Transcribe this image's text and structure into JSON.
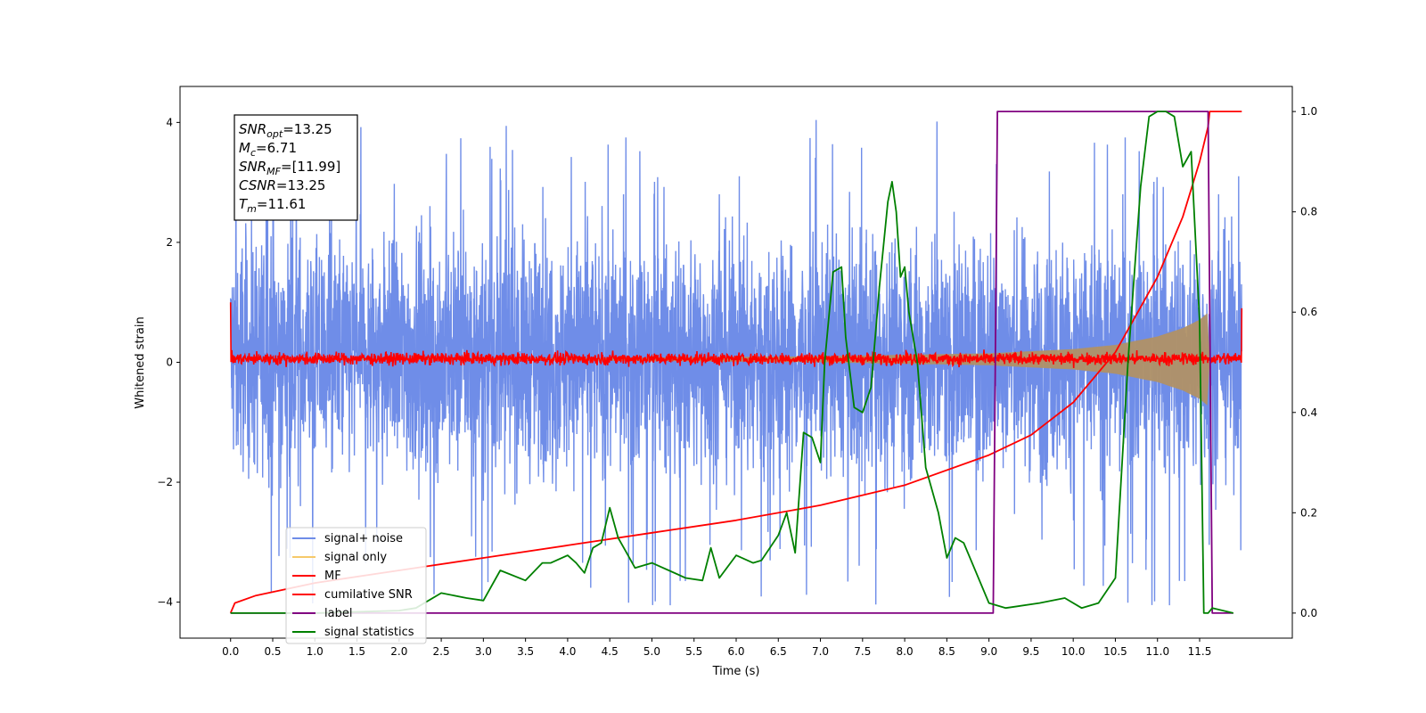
{
  "chart_data": {
    "type": "line",
    "x_axis": {
      "label": "Time (s)",
      "range": [
        -0.6,
        12.6
      ],
      "ticks": [
        0.0,
        0.5,
        1.0,
        1.5,
        2.0,
        2.5,
        3.0,
        3.5,
        4.0,
        4.5,
        5.0,
        5.5,
        6.0,
        6.5,
        7.0,
        7.5,
        8.0,
        8.5,
        9.0,
        9.5,
        10.0,
        10.5,
        11.0,
        11.5
      ],
      "tick_labels": [
        "0.0",
        "0.5",
        "1.0",
        "1.5",
        "2.0",
        "2.5",
        "3.0",
        "3.5",
        "4.0",
        "4.5",
        "5.0",
        "5.5",
        "6.0",
        "6.5",
        "7.0",
        "7.5",
        "8.0",
        "8.5",
        "9.0",
        "9.5",
        "10.0",
        "10.5",
        "11.0",
        "11.5"
      ]
    },
    "y_axis_left": {
      "label": "Whitened strain",
      "range": [
        -4.6,
        4.6
      ],
      "ticks": [
        -4,
        -2,
        0,
        2,
        4
      ],
      "tick_labels": [
        "−4",
        "−2",
        "0",
        "2",
        "4"
      ]
    },
    "y_axis_right": {
      "label": "",
      "range": [
        -0.05,
        1.05
      ],
      "ticks": [
        0.0,
        0.2,
        0.4,
        0.6,
        0.8,
        1.0
      ],
      "tick_labels": [
        "0.0",
        "0.2",
        "0.4",
        "0.6",
        "0.8",
        "1.0"
      ]
    },
    "annotation": [
      {
        "sym": "SNR",
        "sub": "opt",
        "value": "=13.25"
      },
      {
        "sym": "M",
        "sub": "c",
        "value": "=6.71"
      },
      {
        "sym": "SNR",
        "sub": "MF",
        "value": "=[11.99]"
      },
      {
        "sym": "CSNR",
        "sub": "",
        "value": "=13.25"
      },
      {
        "sym": "T",
        "sub": "m",
        "value": "=11.61"
      }
    ],
    "legend_position": "lower-left",
    "series": [
      {
        "name": "signal+ noise",
        "color": "#6f8de8",
        "axis": "left",
        "kind": "noise band",
        "description_values": {
          "t_start": 0.0,
          "t_end": 12.0,
          "typical_min": -2.2,
          "typical_max": 2.4,
          "peak_max": 4.15,
          "peak_min": -4.1
        }
      },
      {
        "name": "signal only",
        "color": "#f6c96a",
        "axis": "left",
        "kind": "chirp envelope",
        "envelope": {
          "t": [
            0.0,
            4.0,
            7.0,
            9.0,
            10.0,
            10.5,
            11.0,
            11.3,
            11.5,
            11.6,
            11.62
          ],
          "amp": [
            0.005,
            0.02,
            0.05,
            0.1,
            0.17,
            0.24,
            0.38,
            0.52,
            0.66,
            0.78,
            0.05
          ]
        }
      },
      {
        "name": "MF",
        "color": "#ff0000",
        "axis": "left",
        "kind": "noisy line",
        "description_values": {
          "center": 0.06,
          "noise_amp": 0.09,
          "start_value": 1.0,
          "end_value": 0.9
        }
      },
      {
        "name": "cumilative SNR",
        "color": "#ff0000",
        "axis": "right",
        "x": [
          0.0,
          0.05,
          0.3,
          1.0,
          2.0,
          3.0,
          4.0,
          5.0,
          6.0,
          7.0,
          8.0,
          9.0,
          9.5,
          10.0,
          10.5,
          11.0,
          11.3,
          11.5,
          11.6,
          11.62,
          12.0
        ],
        "y": [
          0.0,
          0.02,
          0.035,
          0.06,
          0.085,
          0.11,
          0.135,
          0.16,
          0.185,
          0.215,
          0.255,
          0.315,
          0.355,
          0.42,
          0.52,
          0.67,
          0.79,
          0.9,
          0.97,
          1.0,
          1.0
        ]
      },
      {
        "name": "label",
        "color": "#800080",
        "axis": "right",
        "x": [
          0.0,
          9.05,
          9.1,
          11.6,
          11.65,
          11.9
        ],
        "y": [
          0.0,
          0.0,
          1.0,
          1.0,
          0.0,
          0.0
        ]
      },
      {
        "name": "signal statistics",
        "color": "#008000",
        "axis": "right",
        "x": [
          0.0,
          1.0,
          2.0,
          2.2,
          2.5,
          2.8,
          3.0,
          3.2,
          3.5,
          3.7,
          3.8,
          4.0,
          4.1,
          4.2,
          4.3,
          4.4,
          4.5,
          4.6,
          4.7,
          4.8,
          5.0,
          5.2,
          5.4,
          5.6,
          5.7,
          5.8,
          6.0,
          6.2,
          6.3,
          6.5,
          6.6,
          6.7,
          6.8,
          6.9,
          7.0,
          7.05,
          7.15,
          7.25,
          7.3,
          7.4,
          7.5,
          7.6,
          7.7,
          7.8,
          7.85,
          7.9,
          7.95,
          8.0,
          8.05,
          8.15,
          8.25,
          8.4,
          8.5,
          8.6,
          8.7,
          9.0,
          9.2,
          9.6,
          9.9,
          10.1,
          10.3,
          10.5,
          10.65,
          10.8,
          10.9,
          11.0,
          11.1,
          11.2,
          11.3,
          11.4,
          11.5,
          11.55,
          11.6,
          11.65,
          11.9
        ],
        "y": [
          0.0,
          0.0,
          0.005,
          0.01,
          0.04,
          0.03,
          0.025,
          0.085,
          0.065,
          0.1,
          0.1,
          0.115,
          0.1,
          0.08,
          0.13,
          0.14,
          0.21,
          0.15,
          0.12,
          0.09,
          0.1,
          0.085,
          0.07,
          0.065,
          0.13,
          0.07,
          0.115,
          0.1,
          0.105,
          0.155,
          0.2,
          0.12,
          0.36,
          0.35,
          0.3,
          0.5,
          0.68,
          0.69,
          0.55,
          0.41,
          0.4,
          0.45,
          0.65,
          0.82,
          0.86,
          0.8,
          0.67,
          0.69,
          0.6,
          0.5,
          0.29,
          0.2,
          0.11,
          0.15,
          0.14,
          0.02,
          0.01,
          0.02,
          0.03,
          0.01,
          0.02,
          0.07,
          0.5,
          0.85,
          0.99,
          1.0,
          1.0,
          0.99,
          0.89,
          0.92,
          0.58,
          0.0,
          0.0,
          0.01,
          0.0
        ]
      }
    ]
  }
}
